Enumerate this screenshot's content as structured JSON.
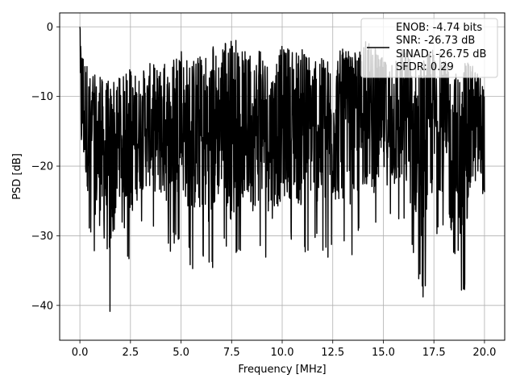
{
  "chart_data": {
    "type": "line",
    "title": "",
    "xlabel": "Frequency [MHz]",
    "ylabel": "PSD [dB]",
    "xlim": [
      -1.0,
      21.0
    ],
    "ylim": [
      -45.0,
      2.0
    ],
    "xticks": [
      0.0,
      2.5,
      5.0,
      7.5,
      10.0,
      12.5,
      15.0,
      17.5,
      20.0
    ],
    "xtick_labels": [
      "0.0",
      "2.5",
      "5.0",
      "7.5",
      "10.0",
      "12.5",
      "15.0",
      "17.5",
      "20.0"
    ],
    "yticks": [
      0,
      -10,
      -20,
      -30,
      -40
    ],
    "ytick_labels": [
      "0",
      "−10",
      "−20",
      "−30",
      "−40"
    ],
    "grid": true,
    "legend_position": "upper-right",
    "legend_entries": [
      "ENOB: -4.74 bits",
      "SNR: -26.73 dB",
      "SINAD: -26.75 dB",
      "SFDR: 0.29"
    ],
    "series": [
      {
        "color": "#000000",
        "envelope": {
          "x": [
            0.0,
            0.5,
            1.0,
            1.5,
            2.0,
            2.5,
            3.0,
            3.5,
            4.0,
            4.5,
            5.0,
            5.5,
            6.0,
            6.5,
            7.0,
            7.5,
            8.0,
            8.5,
            9.0,
            9.5,
            10.0,
            10.5,
            11.0,
            11.5,
            12.0,
            12.5,
            13.0,
            13.5,
            14.0,
            14.5,
            15.0,
            15.5,
            16.0,
            16.5,
            17.0,
            17.5,
            18.0,
            18.5,
            19.0,
            19.5,
            20.0
          ],
          "y_max": [
            0.0,
            -6.5,
            -7.0,
            -7.5,
            -7.0,
            -6.0,
            -6.5,
            -5.0,
            -5.5,
            -4.5,
            -3.5,
            -4.0,
            -3.5,
            -2.5,
            -3.0,
            -1.0,
            -3.0,
            -4.0,
            -2.5,
            -5.0,
            -2.5,
            -2.0,
            -3.0,
            -3.0,
            -4.5,
            -3.5,
            -3.0,
            -4.0,
            -2.0,
            -2.5,
            -4.5,
            -4.0,
            -2.5,
            -4.5,
            -3.5,
            -2.5,
            -4.5,
            -6.0,
            -5.0,
            -5.5,
            -7.0
          ],
          "y_min": [
            -25,
            -31,
            -36,
            -43,
            -29,
            -35,
            -29,
            -29,
            -31,
            -33,
            -30,
            -35,
            -34,
            -37,
            -30,
            -37,
            -32,
            -34,
            -32,
            -35,
            -32,
            -32,
            -34,
            -31,
            -34,
            -33,
            -32,
            -33,
            -30,
            -31,
            -28,
            -30,
            -30,
            -34,
            -40,
            -30,
            -30,
            -42,
            -40,
            -28,
            -30
          ]
        }
      }
    ]
  }
}
